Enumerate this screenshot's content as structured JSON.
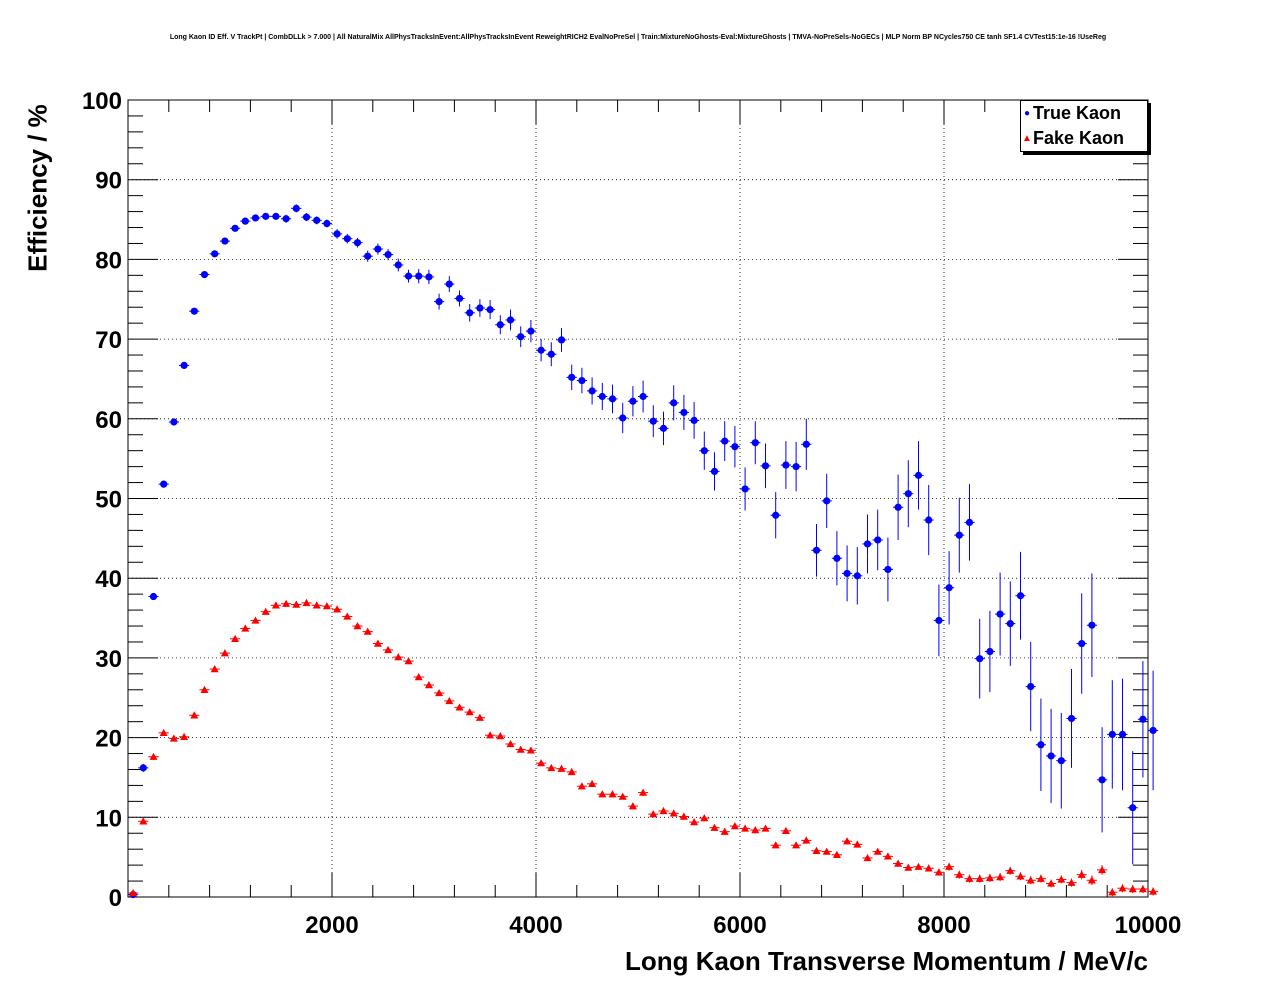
{
  "chart_data": {
    "type": "scatter",
    "title": "Long Kaon ID Eff. V TrackPt | CombDLLk > 7.000 | All NaturalMix AllPhysTracksInEvent:AllPhysTracksInEvent ReweightRICH2 EvalNoPreSel | Train:MixtureNoGhosts-Eval:MixtureGhosts | TMVA-NoPreSels-NoGECs | MLP Norm BP NCycles750 CE tanh SF1.4 CVTest15:1e-16 !UseReg",
    "xlabel": "Long Kaon Transverse Momentum / MeV/c",
    "ylabel": "Efficiency / %",
    "xlim": [
      0,
      10000
    ],
    "ylim": [
      0,
      100
    ],
    "xticks": [
      2000,
      4000,
      6000,
      8000,
      10000
    ],
    "xtick_labels": [
      "2000",
      "4000",
      "6000",
      "8000",
      "10000"
    ],
    "yticks": [
      0,
      10,
      20,
      30,
      40,
      50,
      60,
      70,
      80,
      90,
      100
    ],
    "ytick_labels": [
      "0",
      "10",
      "20",
      "30",
      "40",
      "50",
      "60",
      "70",
      "80",
      "90",
      "100"
    ],
    "grid": true,
    "legend_position": "top-right",
    "series": [
      {
        "name": "True Kaon",
        "color": "#0000ff",
        "marker": "circle",
        "x": [
          50,
          150,
          250,
          350,
          450,
          550,
          650,
          750,
          850,
          950,
          1050,
          1150,
          1250,
          1350,
          1450,
          1550,
          1650,
          1750,
          1850,
          1950,
          2050,
          2150,
          2250,
          2350,
          2450,
          2550,
          2650,
          2750,
          2850,
          2950,
          3050,
          3150,
          3250,
          3350,
          3450,
          3550,
          3650,
          3750,
          3850,
          3950,
          4050,
          4150,
          4250,
          4350,
          4450,
          4550,
          4650,
          4750,
          4850,
          4950,
          5050,
          5150,
          5250,
          5350,
          5450,
          5550,
          5650,
          5750,
          5850,
          5950,
          6050,
          6150,
          6250,
          6350,
          6450,
          6550,
          6650,
          6750,
          6850,
          6950,
          7050,
          7150,
          7250,
          7350,
          7450,
          7550,
          7650,
          7750,
          7850,
          7950,
          8050,
          8150,
          8250,
          8350,
          8450,
          8550,
          8650,
          8750,
          8850,
          8950,
          9050,
          9150,
          9250,
          9350,
          9450,
          9550,
          9650,
          9750,
          9850,
          9950,
          10050
        ],
        "y": [
          0.3,
          16.2,
          37.7,
          51.8,
          59.6,
          66.7,
          73.5,
          78.1,
          80.7,
          82.3,
          83.9,
          84.8,
          85.2,
          85.4,
          85.4,
          85.1,
          86.4,
          85.3,
          84.9,
          84.5,
          83.2,
          82.6,
          82.1,
          80.4,
          81.3,
          80.6,
          79.3,
          77.9,
          77.9,
          77.8,
          74.7,
          76.9,
          75.1,
          73.3,
          73.9,
          73.7,
          71.8,
          72.4,
          70.3,
          71.0,
          68.6,
          68.1,
          69.9,
          65.2,
          64.8,
          63.5,
          62.8,
          62.5,
          60.1,
          62.2,
          62.8,
          59.7,
          58.8,
          62.0,
          60.8,
          59.8,
          56.0,
          53.4,
          57.2,
          56.5,
          51.2,
          57.0,
          54.1,
          47.9,
          54.2,
          54.0,
          56.8,
          43.5,
          49.7,
          42.5,
          40.6,
          40.3,
          44.3,
          44.8,
          41.1,
          48.9,
          50.6,
          52.9,
          47.3,
          34.7,
          38.8,
          45.4,
          47.0,
          29.9,
          30.8,
          35.5,
          34.3,
          37.8,
          26.4,
          19.1,
          17.7,
          17.1,
          22.4,
          31.8,
          34.1,
          14.7,
          20.4,
          20.4,
          11.2,
          22.3,
          20.9
        ],
        "yerr": [
          0.2,
          0.5,
          0.4,
          0.4,
          0.4,
          0.4,
          0.4,
          0.4,
          0.4,
          0.4,
          0.4,
          0.4,
          0.4,
          0.4,
          0.4,
          0.5,
          0.5,
          0.5,
          0.5,
          0.5,
          0.6,
          0.6,
          0.6,
          0.7,
          0.7,
          0.7,
          0.8,
          0.8,
          0.9,
          0.9,
          1.0,
          1.0,
          1.0,
          1.1,
          1.1,
          1.2,
          1.2,
          1.3,
          1.3,
          1.4,
          1.4,
          1.5,
          1.5,
          1.6,
          1.6,
          1.7,
          1.7,
          1.8,
          1.9,
          1.9,
          2.0,
          2.0,
          2.1,
          2.2,
          2.2,
          2.3,
          2.4,
          2.4,
          2.5,
          2.6,
          2.7,
          2.7,
          2.8,
          2.9,
          3.0,
          3.1,
          3.2,
          3.3,
          3.4,
          3.4,
          3.5,
          3.6,
          3.7,
          3.8,
          4.0,
          4.1,
          4.2,
          4.3,
          4.4,
          4.5,
          4.6,
          4.7,
          4.8,
          5.0,
          5.1,
          5.2,
          5.3,
          5.5,
          5.6,
          5.8,
          5.9,
          6.0,
          6.2,
          6.3,
          6.5,
          6.6,
          6.8,
          7.0,
          7.1,
          7.3,
          7.5
        ]
      },
      {
        "name": "Fake Kaon",
        "color": "#ff0000",
        "marker": "triangle",
        "x": [
          50,
          150,
          250,
          350,
          450,
          550,
          650,
          750,
          850,
          950,
          1050,
          1150,
          1250,
          1350,
          1450,
          1550,
          1650,
          1750,
          1850,
          1950,
          2050,
          2150,
          2250,
          2350,
          2450,
          2550,
          2650,
          2750,
          2850,
          2950,
          3050,
          3150,
          3250,
          3350,
          3450,
          3550,
          3650,
          3750,
          3850,
          3950,
          4050,
          4150,
          4250,
          4350,
          4450,
          4550,
          4650,
          4750,
          4850,
          4950,
          5050,
          5150,
          5250,
          5350,
          5450,
          5550,
          5650,
          5750,
          5850,
          5950,
          6050,
          6150,
          6250,
          6350,
          6450,
          6550,
          6650,
          6750,
          6850,
          6950,
          7050,
          7150,
          7250,
          7350,
          7450,
          7550,
          7650,
          7750,
          7850,
          7950,
          8050,
          8150,
          8250,
          8350,
          8450,
          8550,
          8650,
          8750,
          8850,
          8950,
          9050,
          9150,
          9250,
          9350,
          9450,
          9550,
          9650,
          9750,
          9850,
          9950,
          10050
        ],
        "y": [
          0.5,
          9.5,
          17.6,
          20.6,
          19.9,
          20.1,
          22.8,
          26.0,
          28.6,
          30.6,
          32.4,
          33.7,
          34.7,
          35.8,
          36.6,
          36.8,
          36.7,
          36.9,
          36.6,
          36.5,
          36.1,
          35.2,
          34.0,
          33.3,
          31.8,
          31.0,
          30.1,
          29.6,
          27.6,
          26.6,
          25.6,
          24.6,
          23.8,
          23.2,
          22.5,
          20.3,
          20.2,
          19.2,
          18.5,
          18.4,
          16.8,
          16.2,
          16.1,
          15.7,
          13.9,
          14.2,
          12.9,
          12.9,
          12.6,
          11.4,
          13.1,
          10.4,
          10.8,
          10.5,
          10.1,
          9.4,
          9.9,
          8.7,
          8.2,
          8.9,
          8.6,
          8.4,
          8.6,
          6.5,
          8.3,
          6.5,
          7.1,
          5.8,
          5.7,
          5.3,
          7.0,
          6.6,
          4.9,
          5.7,
          5.1,
          4.2,
          3.7,
          3.8,
          3.6,
          3.1,
          3.8,
          2.8,
          2.3,
          2.3,
          2.4,
          2.5,
          3.3,
          2.6,
          2.1,
          2.3,
          1.7,
          2.2,
          1.8,
          2.8,
          2.1,
          3.4,
          0.6,
          1.1,
          1.0,
          1.0,
          0.7
        ],
        "yerr": [
          0.2,
          0.4,
          0.4,
          0.3,
          0.3,
          0.3,
          0.3,
          0.3,
          0.3,
          0.3,
          0.3,
          0.3,
          0.3,
          0.3,
          0.3,
          0.3,
          0.3,
          0.3,
          0.3,
          0.3,
          0.3,
          0.3,
          0.3,
          0.3,
          0.3,
          0.3,
          0.3,
          0.3,
          0.3,
          0.3,
          0.3,
          0.3,
          0.3,
          0.3,
          0.3,
          0.3,
          0.3,
          0.3,
          0.3,
          0.3,
          0.3,
          0.3,
          0.3,
          0.3,
          0.3,
          0.3,
          0.3,
          0.3,
          0.3,
          0.3,
          0.4,
          0.4,
          0.4,
          0.4,
          0.4,
          0.4,
          0.4,
          0.4,
          0.4,
          0.4,
          0.4,
          0.4,
          0.4,
          0.4,
          0.4,
          0.4,
          0.4,
          0.4,
          0.4,
          0.4,
          0.4,
          0.4,
          0.4,
          0.4,
          0.4,
          0.4,
          0.4,
          0.4,
          0.4,
          0.4,
          0.5,
          0.5,
          0.5,
          0.5,
          0.5,
          0.5,
          0.5,
          0.5,
          0.5,
          0.5,
          0.5,
          0.5,
          0.5,
          0.6,
          0.6,
          0.6,
          0.5,
          0.5,
          0.5,
          0.5,
          0.5
        ]
      }
    ]
  }
}
